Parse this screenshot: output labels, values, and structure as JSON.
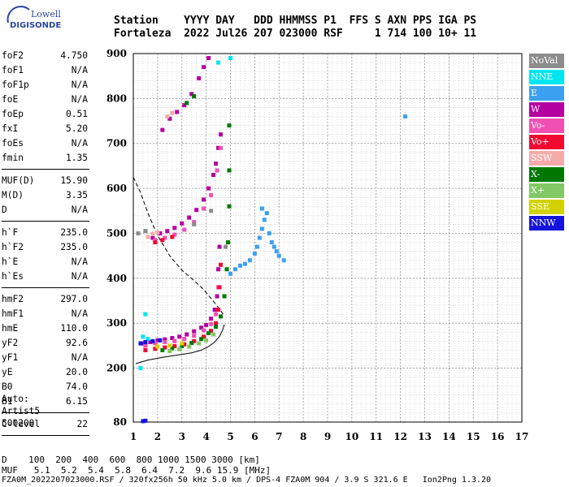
{
  "logo": {
    "line1": "Lowell",
    "line2": "DIGISONDE"
  },
  "header": {
    "labels": "Station    YYYY DAY   DDD HHMMSS P1  FFS S AXN PPS IGA PS",
    "values": "Fortaleza  2022 Jul26 207 023000 RSF     1 714 100 10+ 11"
  },
  "params": {
    "group1": [
      {
        "label": "foF2",
        "value": "4.750"
      },
      {
        "label": "foF1",
        "value": "N/A"
      },
      {
        "label": "foF1p",
        "value": "N/A"
      },
      {
        "label": "foE",
        "value": "N/A"
      },
      {
        "label": "foEp",
        "value": "0.51"
      },
      {
        "label": "fxI",
        "value": "5.20"
      },
      {
        "label": "foEs",
        "value": "N/A"
      },
      {
        "label": "fmin",
        "value": "1.35"
      }
    ],
    "group2": [
      {
        "label": "MUF(D)",
        "value": "15.90"
      },
      {
        "label": "M(D)",
        "value": "3.35"
      },
      {
        "label": "D",
        "value": "N/A"
      }
    ],
    "group3": [
      {
        "label": "h`F",
        "value": "235.0"
      },
      {
        "label": "h`F2",
        "value": "235.0"
      },
      {
        "label": "h`E",
        "value": "N/A"
      },
      {
        "label": "h`Es",
        "value": "N/A"
      }
    ],
    "group4": [
      {
        "label": "hmF2",
        "value": "297.0"
      },
      {
        "label": "hmF1",
        "value": "N/A"
      },
      {
        "label": "hmE",
        "value": "110.0"
      },
      {
        "label": "yF2",
        "value": "92.6"
      },
      {
        "label": "yF1",
        "value": "N/A"
      },
      {
        "label": "yE",
        "value": "20.0"
      },
      {
        "label": "B0",
        "value": "74.0"
      },
      {
        "label": "B1",
        "value": "6.15"
      }
    ],
    "group5": [
      {
        "label": "C-level",
        "value": "22"
      }
    ]
  },
  "auto": {
    "line1": "Auto:",
    "line2": "Artist5",
    "line3": "500200"
  },
  "legend": [
    {
      "label": "NoVal",
      "color": "#8c8c8c"
    },
    {
      "label": "NNE",
      "color": "#00e6f0"
    },
    {
      "label": "E",
      "color": "#3ca0f0"
    },
    {
      "label": "W",
      "color": "#b400a0"
    },
    {
      "label": "Vo-",
      "color": "#f050b4"
    },
    {
      "label": "Vo+",
      "color": "#f00a32"
    },
    {
      "label": "SSW",
      "color": "#f5aaaa"
    },
    {
      "label": "X-",
      "color": "#007800"
    },
    {
      "label": "X+",
      "color": "#82c864"
    },
    {
      "label": "SSE",
      "color": "#d2d200"
    },
    {
      "label": "NNW",
      "color": "#1414dc"
    }
  ],
  "bottom": {
    "line1": "D    100  200  400  600  800 1000 1500 3000 [km]",
    "line2": "MUF   5.1  5.2  5.4  5.8  6.4  7.2  9.6 15.9 [MHz]"
  },
  "footer": "FZA0M_2022207023000.RSF / 320fx256h 50 kHz 5.0 km / DPS-4 FZA0M 904 / 3.9 S 321.6 E   Ion2Png 1.3.20",
  "chart_data": {
    "type": "scatter",
    "title": "",
    "xlabel": "",
    "ylabel": "",
    "xlim": [
      1,
      17
    ],
    "ylim": [
      80,
      900
    ],
    "x_ticks": [
      1,
      2,
      3,
      4,
      5,
      6,
      7,
      8,
      9,
      10,
      11,
      12,
      13,
      14,
      15,
      16,
      17
    ],
    "y_ticks": [
      80,
      200,
      300,
      400,
      500,
      600,
      700,
      800,
      900
    ],
    "x_minor_step": 0.2,
    "y_minor_step": 20,
    "grid": true,
    "legend_position": "right",
    "profile_line": {
      "name": "",
      "x": [
        1.1,
        1.6,
        2.2,
        2.8,
        3.4,
        3.8,
        4.1,
        4.35,
        4.55,
        4.68,
        4.75
      ],
      "y": [
        210,
        218,
        224,
        229,
        234,
        240,
        248,
        258,
        271,
        285,
        297
      ]
    },
    "muf_curve": {
      "name": "",
      "x": [
        1.0,
        1.3,
        1.6,
        2.0,
        2.5,
        3.0,
        3.5,
        3.9,
        4.2,
        4.5,
        4.7
      ],
      "y": [
        625,
        590,
        545,
        495,
        450,
        418,
        395,
        375,
        355,
        335,
        320
      ]
    },
    "series": [
      {
        "name": "W",
        "color": "#b400a0",
        "points": [
          [
            1.4,
            255
          ],
          [
            1.7,
            258
          ],
          [
            2.0,
            262
          ],
          [
            2.3,
            264
          ],
          [
            2.6,
            267
          ],
          [
            2.9,
            270
          ],
          [
            3.2,
            275
          ],
          [
            3.5,
            282
          ],
          [
            3.8,
            290
          ],
          [
            4.0,
            296
          ],
          [
            4.2,
            310
          ],
          [
            4.35,
            330
          ],
          [
            4.45,
            360
          ],
          [
            4.5,
            420
          ],
          [
            4.55,
            470
          ],
          [
            1.8,
            490
          ],
          [
            2.1,
            500
          ],
          [
            2.4,
            505
          ],
          [
            2.7,
            512
          ],
          [
            3.0,
            522
          ],
          [
            3.3,
            535
          ],
          [
            3.6,
            552
          ],
          [
            3.9,
            575
          ],
          [
            4.1,
            600
          ],
          [
            4.3,
            630
          ],
          [
            4.4,
            655
          ],
          [
            4.5,
            690
          ],
          [
            4.6,
            720
          ],
          [
            2.2,
            730
          ],
          [
            2.5,
            755
          ],
          [
            2.8,
            770
          ],
          [
            3.1,
            785
          ],
          [
            3.4,
            810
          ],
          [
            3.7,
            845
          ],
          [
            3.9,
            870
          ],
          [
            4.1,
            890
          ]
        ]
      },
      {
        "name": "Vo-",
        "color": "#f050b4",
        "points": [
          [
            1.5,
            250
          ],
          [
            1.9,
            255
          ],
          [
            2.3,
            258
          ],
          [
            2.7,
            260
          ],
          [
            3.1,
            265
          ],
          [
            3.5,
            272
          ],
          [
            3.9,
            284
          ],
          [
            4.2,
            298
          ],
          [
            4.4,
            320
          ],
          [
            4.5,
            380
          ],
          [
            1.9,
            485
          ],
          [
            2.3,
            490
          ],
          [
            2.7,
            497
          ],
          [
            3.1,
            508
          ],
          [
            3.5,
            525
          ],
          [
            3.9,
            555
          ],
          [
            4.2,
            585
          ],
          [
            4.45,
            640
          ],
          [
            4.6,
            690
          ]
        ]
      },
      {
        "name": "Vo+",
        "color": "#f00a32",
        "points": [
          [
            1.5,
            240
          ],
          [
            1.9,
            243
          ],
          [
            2.3,
            246
          ],
          [
            2.7,
            249
          ],
          [
            3.1,
            253
          ],
          [
            3.5,
            260
          ],
          [
            3.9,
            270
          ],
          [
            4.2,
            283
          ],
          [
            4.4,
            300
          ],
          [
            4.5,
            330
          ],
          [
            4.55,
            380
          ],
          [
            4.6,
            430
          ],
          [
            1.9,
            480
          ],
          [
            2.2,
            485
          ],
          [
            2.6,
            492
          ]
        ]
      },
      {
        "name": "X-",
        "color": "#007800",
        "points": [
          [
            2.2,
            240
          ],
          [
            2.6,
            244
          ],
          [
            3.0,
            249
          ],
          [
            3.4,
            256
          ],
          [
            3.8,
            265
          ],
          [
            4.1,
            278
          ],
          [
            4.4,
            292
          ],
          [
            4.6,
            315
          ],
          [
            4.75,
            360
          ],
          [
            4.85,
            420
          ],
          [
            4.9,
            480
          ],
          [
            4.95,
            560
          ],
          [
            4.95,
            640
          ],
          [
            4.95,
            740
          ],
          [
            3.2,
            790
          ],
          [
            3.5,
            805
          ]
        ]
      },
      {
        "name": "X+",
        "color": "#82c864",
        "points": [
          [
            2.5,
            238
          ],
          [
            2.9,
            242
          ],
          [
            3.3,
            248
          ],
          [
            3.7,
            255
          ],
          [
            4.0,
            262
          ],
          [
            4.3,
            275
          ]
        ]
      },
      {
        "name": "E",
        "color": "#3ca0f0",
        "points": [
          [
            5.0,
            410
          ],
          [
            5.2,
            420
          ],
          [
            5.4,
            428
          ],
          [
            5.6,
            432
          ],
          [
            5.8,
            440
          ],
          [
            6.0,
            455
          ],
          [
            6.1,
            470
          ],
          [
            6.2,
            490
          ],
          [
            6.3,
            510
          ],
          [
            6.4,
            530
          ],
          [
            6.5,
            545
          ],
          [
            6.3,
            555
          ],
          [
            6.6,
            500
          ],
          [
            6.7,
            480
          ],
          [
            6.8,
            470
          ],
          [
            6.9,
            460
          ],
          [
            7.0,
            450
          ],
          [
            7.2,
            440
          ],
          [
            12.2,
            760
          ]
        ]
      },
      {
        "name": "NNE",
        "color": "#00e6f0",
        "points": [
          [
            1.4,
            270
          ],
          [
            1.6,
            265
          ],
          [
            4.5,
            880
          ],
          [
            5.0,
            890
          ],
          [
            1.5,
            320
          ],
          [
            1.3,
            200
          ]
        ]
      },
      {
        "name": "NNW",
        "color": "#1414dc",
        "points": [
          [
            1.3,
            255
          ],
          [
            1.5,
            258
          ],
          [
            1.8,
            260
          ],
          [
            2.1,
            262
          ],
          [
            1.4,
            82
          ],
          [
            1.5,
            83
          ]
        ]
      },
      {
        "name": "SSW",
        "color": "#f5aaaa",
        "points": [
          [
            1.6,
            492
          ],
          [
            1.8,
            498
          ],
          [
            2.0,
            502
          ],
          [
            2.4,
            760
          ],
          [
            2.6,
            768
          ]
        ]
      },
      {
        "name": "SSE",
        "color": "#d2d200",
        "points": [
          [
            2.0,
            248
          ],
          [
            2.5,
            250
          ],
          [
            3.0,
            255
          ]
        ]
      },
      {
        "name": "NoVal",
        "color": "#8c8c8c",
        "points": [
          [
            1.2,
            500
          ],
          [
            1.5,
            505
          ],
          [
            3.5,
            520
          ],
          [
            4.2,
            550
          ],
          [
            4.8,
            470
          ]
        ]
      }
    ]
  }
}
